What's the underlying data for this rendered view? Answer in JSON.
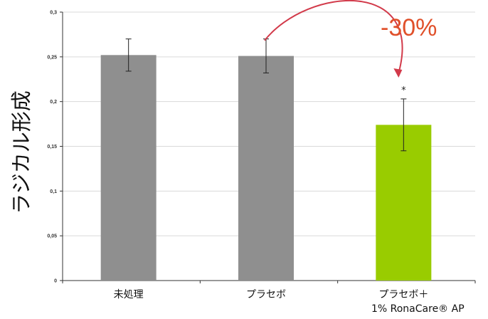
{
  "chart_data": {
    "type": "bar",
    "categories": [
      "未処理",
      "プラセボ",
      "プラセボ＋\n1%  RonaCare®  AP"
    ],
    "values": [
      0.252,
      0.251,
      0.174
    ],
    "error_low": [
      0.234,
      0.232,
      0.145
    ],
    "error_high": [
      0.27,
      0.27,
      0.203
    ],
    "bar_colors": [
      "#8f8f8f",
      "#8f8f8f",
      "#99cc00"
    ],
    "significance": [
      "",
      "",
      "*"
    ],
    "title": "",
    "xlabel": "",
    "ylabel": "ラジカル形成",
    "ylim": [
      0,
      0.3
    ],
    "yticks": [
      0,
      0.05,
      0.1,
      0.15,
      0.2,
      0.25,
      0.3
    ],
    "ytick_labels": [
      "0",
      "0,05",
      "0,1",
      "0,15",
      "0,2",
      "0,25",
      "0,3"
    ],
    "grid": true,
    "legend": "none",
    "annotation": {
      "text": "-30%",
      "color": "#e0502a",
      "arrow_color": "#d23a4a",
      "from_category": 1,
      "to_category": 2
    }
  }
}
